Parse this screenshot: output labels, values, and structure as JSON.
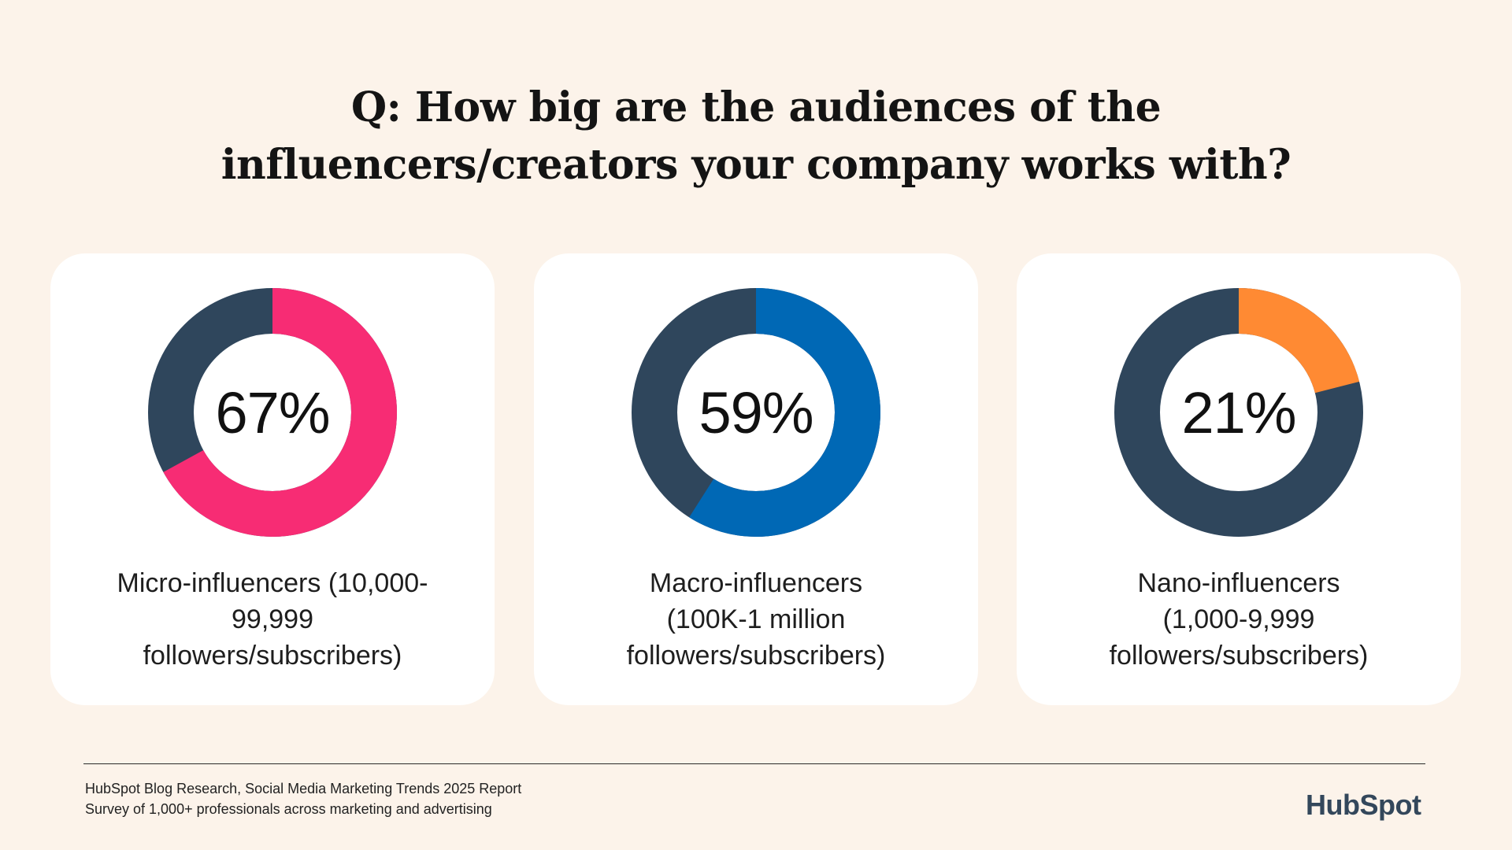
{
  "title": {
    "line1": "Q: How big are the audiences of the",
    "line2": "influencers/creators your company works with?"
  },
  "chart_data": [
    {
      "type": "pie",
      "variant": "donut",
      "value": 67,
      "display": "67%",
      "label_lines": [
        "Micro-influencers (10,000-",
        "99,999",
        "followers/subscribers)"
      ],
      "color": "#F72C74",
      "remainder_color": "#2F465C"
    },
    {
      "type": "pie",
      "variant": "donut",
      "value": 59,
      "display": "59%",
      "label_lines": [
        "Macro-influencers",
        "(100K-1 million",
        "followers/subscribers)"
      ],
      "color": "#0068B5",
      "remainder_color": "#2F465C"
    },
    {
      "type": "pie",
      "variant": "donut",
      "value": 21,
      "display": "21%",
      "label_lines": [
        "Nano-influencers",
        "(1,000-9,999",
        "followers/subscribers)"
      ],
      "color": "#FF8A33",
      "remainder_color": "#2F465C"
    }
  ],
  "footer": {
    "source_line1": "HubSpot Blog Research, Social Media Marketing Trends 2025 Report",
    "source_line2": "Survey of 1,000+ professionals across marketing and advertising",
    "logo_text": "HubSpot"
  },
  "colors": {
    "background": "#FCF3EA",
    "card": "#FFFFFF",
    "remainder": "#2F465C",
    "logo": "#33475B",
    "logo_accent": "#FF5C35"
  }
}
